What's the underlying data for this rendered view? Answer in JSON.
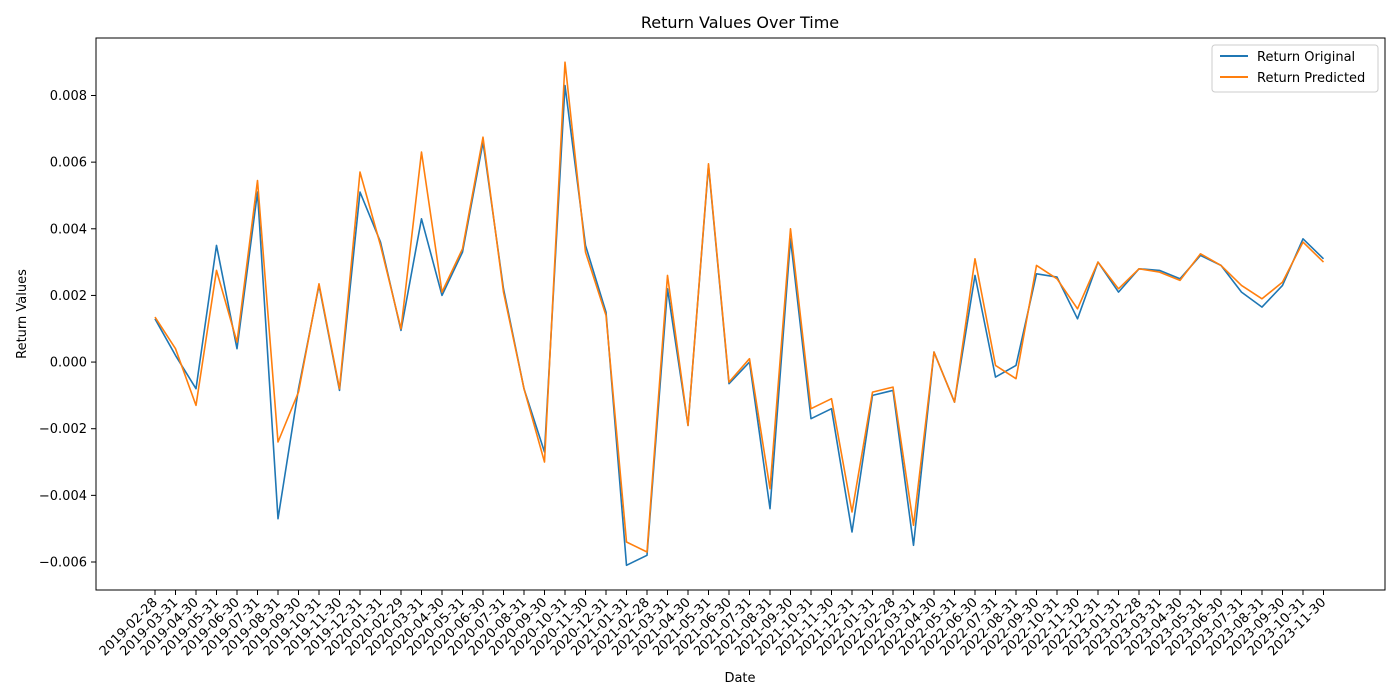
{
  "chart_data": {
    "type": "line",
    "title": "Return Values Over Time",
    "xlabel": "Date",
    "ylabel": "Return Values",
    "ylim": [
      -0.0068,
      0.0095
    ],
    "yticks": [
      "−0.006",
      "−0.004",
      "−0.002",
      "0.000",
      "0.002",
      "0.004",
      "0.006",
      "0.008"
    ],
    "ytick_values": [
      -0.006,
      -0.004,
      -0.002,
      0.0,
      0.002,
      0.004,
      0.006,
      0.008
    ],
    "legend_position": "top-right",
    "grid": false,
    "x": [
      "2019-02-28",
      "2019-03-31",
      "2019-04-30",
      "2019-05-31",
      "2019-06-30",
      "2019-07-31",
      "2019-08-31",
      "2019-09-30",
      "2019-10-31",
      "2019-11-30",
      "2019-12-31",
      "2020-01-31",
      "2020-02-29",
      "2020-03-31",
      "2020-04-30",
      "2020-05-31",
      "2020-06-30",
      "2020-07-31",
      "2020-08-31",
      "2020-09-30",
      "2020-10-31",
      "2020-11-30",
      "2020-12-31",
      "2021-01-31",
      "2021-02-28",
      "2021-03-31",
      "2021-04-30",
      "2021-05-31",
      "2021-06-30",
      "2021-07-31",
      "2021-08-31",
      "2021-09-30",
      "2021-10-31",
      "2021-11-30",
      "2021-12-31",
      "2022-01-31",
      "2022-02-28",
      "2022-03-31",
      "2022-04-30",
      "2022-05-31",
      "2022-06-30",
      "2022-07-31",
      "2022-08-31",
      "2022-09-30",
      "2022-10-31",
      "2022-11-30",
      "2022-12-31",
      "2023-01-31",
      "2023-02-28",
      "2023-03-31",
      "2023-04-30",
      "2023-05-31",
      "2023-06-30",
      "2023-07-31",
      "2023-08-31",
      "2023-09-30",
      "2023-10-31",
      "2023-11-30"
    ],
    "series": [
      {
        "name": "Return Original",
        "color": "#1f77b4",
        "values": [
          0.0013,
          0.0002,
          -0.0008,
          0.0035,
          0.0004,
          0.0051,
          -0.0047,
          -0.0008,
          0.0023,
          -0.00085,
          0.0051,
          0.0036,
          0.00095,
          0.0043,
          0.002,
          0.0033,
          0.0066,
          0.0022,
          -0.0008,
          -0.0027,
          0.0083,
          0.0035,
          0.0015,
          -0.0061,
          -0.0058,
          0.0022,
          -0.0019,
          0.0059,
          -0.00065,
          0.0,
          -0.0044,
          0.0037,
          -0.0017,
          -0.0014,
          -0.0051,
          -0.001,
          -0.00085,
          -0.0055,
          0.0003,
          -0.0012,
          0.0026,
          -0.00045,
          -0.0001,
          0.00265,
          0.00255,
          0.0013,
          0.003,
          0.0021,
          0.0028,
          0.00275,
          0.0025,
          0.0032,
          0.0029,
          0.0021,
          0.00165,
          0.0023,
          0.0037,
          0.0031
        ]
      },
      {
        "name": "Return Predicted",
        "color": "#ff7f0e",
        "values": [
          0.00135,
          0.0004,
          -0.0013,
          0.00275,
          0.0006,
          0.00545,
          -0.0024,
          -0.0009,
          0.00235,
          -0.0008,
          0.0057,
          0.0035,
          0.001,
          0.0063,
          0.0021,
          0.0034,
          0.00675,
          0.0021,
          -0.0008,
          -0.003,
          0.009,
          0.0033,
          0.0014,
          -0.0054,
          -0.0057,
          0.0026,
          -0.0019,
          0.00595,
          -0.0006,
          0.0001,
          -0.0038,
          0.004,
          -0.0014,
          -0.0011,
          -0.0045,
          -0.0009,
          -0.00075,
          -0.0049,
          0.0003,
          -0.0012,
          0.0031,
          -0.0001,
          -0.0005,
          0.0029,
          0.0025,
          0.0016,
          0.003,
          0.0022,
          0.0028,
          0.0027,
          0.00245,
          0.00325,
          0.0029,
          0.0023,
          0.0019,
          0.0024,
          0.0036,
          0.003
        ]
      }
    ]
  }
}
